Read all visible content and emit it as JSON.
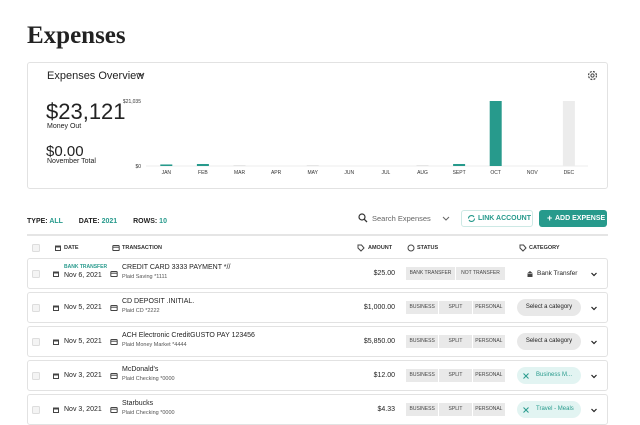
{
  "header": {
    "title": "Expenses"
  },
  "overview": {
    "title": "Expenses Overview",
    "total": "$23,121",
    "total_label": "Money Out",
    "month_total": "$0.00",
    "month_label": "November Total",
    "chart_data": {
      "type": "bar",
      "categories": [
        "JAN",
        "FEB",
        "MAR",
        "APR",
        "MAY",
        "JUN",
        "JUL",
        "AUG",
        "SEPT",
        "OCT",
        "NOV",
        "DEC"
      ],
      "values": [
        500,
        650,
        300,
        0,
        300,
        0,
        0,
        300,
        650,
        21035,
        0,
        21035
      ],
      "colors": [
        "#279a8c",
        "#279a8c",
        "#e4e4e4",
        "#e4e4e4",
        "#e4e4e4",
        "#e4e4e4",
        "#e4e4e4",
        "#e4e4e4",
        "#279a8c",
        "#279a8c",
        "#e4e4e4",
        "#ececec"
      ],
      "ylim": [
        0,
        21035
      ],
      "yticks": [
        {
          "value": 21035,
          "label": "$21,035"
        },
        {
          "value": 0,
          "label": "$0"
        }
      ]
    }
  },
  "filters": {
    "type_label": "TYPE:",
    "type": "ALL",
    "date_label": "DATE:",
    "date": "2021",
    "rows_label": "ROWS:",
    "rows": "10",
    "search": "Search Expenses",
    "link": "LINK ACCOUNT",
    "add": "ADD EXPENSE"
  },
  "table": {
    "columns": [
      "DATE",
      "TRANSACTION",
      "AMOUNT",
      "STATUS",
      "CATEGORY"
    ],
    "rows": [
      {
        "badge": "BANK TRANSFER",
        "date": "Nov 6, 2021",
        "name": "CREDIT CARD 3333 PAYMENT *//",
        "account": "Plaid Saving *1111",
        "amount": "$25.00",
        "statuses": [
          "BANK TRANSFER",
          "NOT TRANSFER"
        ],
        "category": "Bank Transfer"
      },
      {
        "date": "Nov 5, 2021",
        "name": "CD DEPOSIT .INITIAL.",
        "account": "Plaid CD *2222",
        "amount": "$1,000.00",
        "statuses": [
          "BUSINESS",
          "SPLIT",
          "PERSONAL"
        ],
        "category": "Select a category"
      },
      {
        "date": "Nov 5, 2021",
        "name": "ACH Electronic CreditGUSTO PAY 123456",
        "account": "Plaid Money Market *4444",
        "amount": "$5,850.00",
        "statuses": [
          "BUSINESS",
          "SPLIT",
          "PERSONAL"
        ],
        "category": "Select a category"
      },
      {
        "date": "Nov 3, 2021",
        "name": "McDonald's",
        "account": "Plaid Checking *0000",
        "amount": "$12.00",
        "statuses": [
          "BUSINESS",
          "SPLIT",
          "PERSONAL"
        ],
        "category": "Business M..."
      },
      {
        "date": "Nov 3, 2021",
        "name": "Starbucks",
        "account": "Plaid Checking *0000",
        "amount": "$4.33",
        "statuses": [
          "BUSINESS",
          "SPLIT",
          "PERSONAL"
        ],
        "category": "Travel - Meals"
      }
    ]
  }
}
